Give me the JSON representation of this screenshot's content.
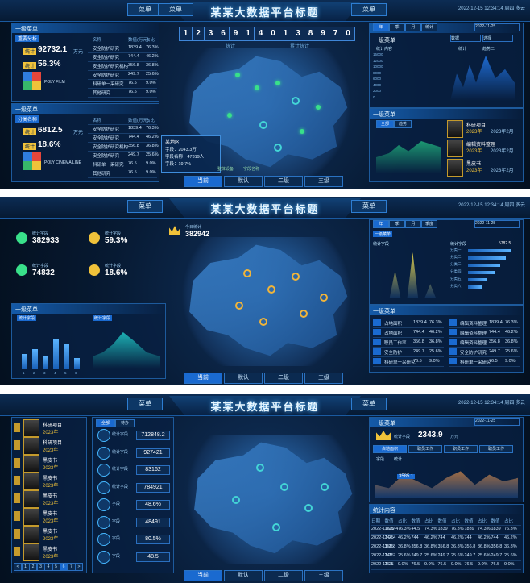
{
  "common": {
    "title": "某某大数据平台标题",
    "menu_left": "菜单",
    "menu_left2": "菜单",
    "menu_right": "菜单",
    "time": "2022-12-15 12:34:14  周四  多云",
    "tabs": [
      "当前",
      "默认",
      "二级",
      "三级"
    ]
  },
  "screen1": {
    "digits": [
      "1",
      "2",
      "3",
      "6",
      "9",
      "1",
      "4",
      "0",
      "1",
      "3",
      "8",
      "9",
      "7",
      "0"
    ],
    "digits_label_left": "统计",
    "digits_label_right": "累计统计",
    "left_panel_title": "一级菜单",
    "left_sub1": "重要分析",
    "left_sub2": "分类名称",
    "left_stats": [
      {
        "badge": "统计",
        "value": "92732.1",
        "unit": "万元"
      },
      {
        "badge": "统计",
        "value": "56.3%",
        "unit": ""
      },
      {
        "badge": "统计",
        "value": "6812.5",
        "unit": "万元"
      },
      {
        "badge": "统计",
        "value": "18.6%",
        "unit": ""
      }
    ],
    "logo_text1": "POLY FILM",
    "logo_text2": "POLY CINEMA LINE",
    "table_head": [
      "名称",
      "数值(万元)",
      "占比"
    ],
    "table_rows_top": [
      [
        "安全防护研究",
        "1839.4",
        "76.3%"
      ],
      [
        "安全防护研究",
        "744.4",
        "46.2%"
      ],
      [
        "安全防护研究机构",
        "356.8",
        "36.8%"
      ],
      [
        "安全防护研究",
        "249.7",
        "25.6%"
      ],
      [
        "科研单一采研究",
        "76.5",
        "9.0%"
      ],
      [
        "其他研究",
        "76.5",
        "9.0%"
      ]
    ],
    "table_rows_bottom": [
      [
        "安全防护研究",
        "1839.4",
        "76.3%"
      ],
      [
        "安全防护研究",
        "744.4",
        "46.2%"
      ],
      [
        "安全防护研究机构",
        "356.8",
        "36.8%"
      ],
      [
        "安全防护研究",
        "249.7",
        "25.6%"
      ],
      [
        "科研单一采研究",
        "76.5",
        "9.0%"
      ],
      [
        "其他研究",
        "76.5",
        "9.0%"
      ]
    ],
    "tooltip": {
      "title": "某地区",
      "l1": "字段：2043.3万",
      "l2": "字段名称：47319人",
      "l3": "字段：19.7%"
    },
    "legend": [
      "整体设备",
      "字段名称"
    ],
    "right_title": "一级菜单",
    "right_tabs": [
      "年",
      "季",
      "月",
      "统计"
    ],
    "right_date": "2022-11-25",
    "right_select1": "数据",
    "right_select2": "选择",
    "right_legend": [
      "统计内容",
      "统计",
      "趋势二"
    ],
    "y_ticks": [
      "15000",
      "12000",
      "10000",
      "8000",
      "6000",
      "4000",
      "2000",
      "0"
    ],
    "right_panel2_title": "一级菜单",
    "right_tabs2": [
      "全部",
      "趋势"
    ],
    "list_items": [
      {
        "name": "科研项目",
        "date": "2023年",
        "price": "2023年2月"
      },
      {
        "name": "编辑资料整理",
        "date": "2023年",
        "price": "2023年2月"
      },
      {
        "name": "黑皮书",
        "date": "2023年",
        "price": "2023年2月"
      }
    ]
  },
  "screen2": {
    "stats": [
      {
        "label": "统计字段",
        "value": "382933"
      },
      {
        "label": "统计字段",
        "value": "59.3%"
      },
      {
        "label": "统计字段",
        "value": "74832"
      },
      {
        "label": "统计字段",
        "value": "18.6%"
      }
    ],
    "crown_label": "今日统计",
    "crown_value": "382942",
    "left_title": "一级菜单",
    "chart_titles": [
      "统计字段",
      "统计字段"
    ],
    "bar_values": [
      40,
      55,
      35,
      85,
      70,
      30
    ],
    "bar_labels": [
      "1",
      "2",
      "3",
      "4",
      "5",
      "6"
    ],
    "right_title": "一级菜单",
    "right_tabs": [
      "年",
      "季",
      "月",
      "季度"
    ],
    "right_date": "2022-11-25",
    "chart_a_title": "统计字段",
    "chart_b_title": "统计字段",
    "hbars": [
      90,
      78,
      66,
      55,
      40,
      28
    ],
    "hbar_labels": [
      "分类一",
      "分类二",
      "分类三",
      "分类四",
      "分类五",
      "分类六"
    ],
    "hbar_value": "5782.5",
    "table_title": "一级菜单",
    "table_left": [
      [
        "占地面积",
        "1839.4",
        "76.3%"
      ],
      [
        "占地面积",
        "744.4",
        "46.2%"
      ],
      [
        "职员工作率",
        "356.8",
        "36.8%"
      ],
      [
        "安全防护",
        "249.7",
        "25.6%"
      ],
      [
        "科研单一采研究",
        "76.5",
        "9.0%"
      ]
    ],
    "table_right": [
      [
        "编辑资料整理",
        "1839.4",
        "76.3%"
      ],
      [
        "编辑资料整理",
        "744.4",
        "46.2%"
      ],
      [
        "编辑资料整理",
        "356.8",
        "36.8%"
      ],
      [
        "安全防护研究",
        "249.7",
        "25.6%"
      ],
      [
        "科研单一采研究",
        "76.5",
        "9.0%"
      ]
    ]
  },
  "screen3": {
    "left_list": [
      {
        "name": "科研项目",
        "date": "2023年"
      },
      {
        "name": "科研项目",
        "date": "2023年"
      },
      {
        "name": "黑皮书",
        "date": "2023年"
      },
      {
        "name": "黑皮书",
        "date": "2023年"
      },
      {
        "name": "黑皮书",
        "date": "2023年"
      },
      {
        "name": "黑皮书",
        "date": "2023年"
      },
      {
        "name": "黑皮书",
        "date": "2023年"
      },
      {
        "name": "黑皮书",
        "date": "2023年"
      }
    ],
    "left_tabs": [
      "全部",
      "待办"
    ],
    "metrics": [
      {
        "label": "统计字段",
        "value": "712848.2"
      },
      {
        "label": "统计字段",
        "value": "927421"
      },
      {
        "label": "统计字段",
        "value": "83162"
      },
      {
        "label": "统计字段",
        "value": "784921"
      },
      {
        "label": "字段",
        "value": "48.6%"
      },
      {
        "label": "字段",
        "value": "48491"
      },
      {
        "label": "字段",
        "value": "80.5%"
      },
      {
        "label": "字段",
        "value": "48.5"
      }
    ],
    "pager": [
      "<",
      "1",
      "2",
      "3",
      "4",
      "5",
      "6",
      "7",
      ">"
    ],
    "right_title": "一级菜单",
    "right_date": "2022-11-25",
    "right_value": "2343.9",
    "right_value_unit": "万元",
    "right_value_label": "统计字段",
    "right_tabs": [
      "占地面积",
      "职员工作",
      "职员工作",
      "职员工作"
    ],
    "chart_legend": [
      "字段",
      "统计"
    ],
    "tooltip_value": "3585.1",
    "table_title": "统计内容",
    "table_head": [
      "日期",
      "数值",
      "占比",
      "数值",
      "占比",
      "数值",
      "占比",
      "数值",
      "占比",
      "数值",
      "占比"
    ],
    "table_rows": [
      [
        "2022-11-25",
        "1839.4",
        "76.3%",
        "44.5",
        "74.3%",
        "1839",
        "76.3%",
        "1839",
        "74.3%",
        "1839",
        "76.3%"
      ],
      [
        "2022-11-25",
        "744.4",
        "46.2%",
        "744",
        "46.2%",
        "744",
        "46.2%",
        "744",
        "46.2%",
        "744",
        "46.2%"
      ],
      [
        "2022-11-25",
        "356.8",
        "36.8%",
        "356.8",
        "36.8%",
        "356.8",
        "36.8%",
        "356.8",
        "36.8%",
        "356.8",
        "36.8%"
      ],
      [
        "2022-11-25",
        "249.7",
        "25.6%",
        "249.7",
        "25.6%",
        "249.7",
        "25.6%",
        "249.7",
        "25.6%",
        "249.7",
        "25.6%"
      ],
      [
        "2022-11-25",
        "76.5",
        "9.0%",
        "76.5",
        "9.0%",
        "76.5",
        "9.0%",
        "76.5",
        "9.0%",
        "76.5",
        "9.0%"
      ]
    ]
  }
}
